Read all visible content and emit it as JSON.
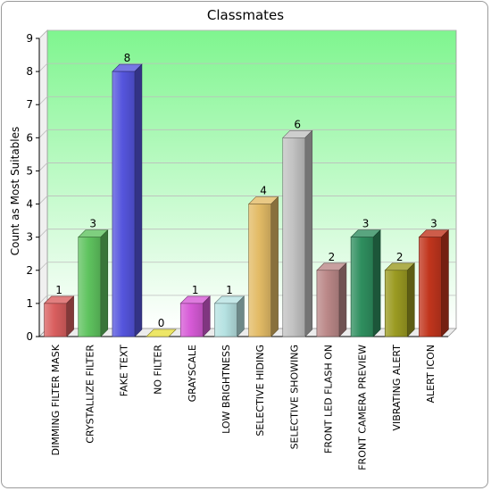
{
  "chart_data": {
    "type": "bar",
    "title": "Classmates",
    "xlabel": "",
    "ylabel": "Count as Most Suitables",
    "ylim": [
      0,
      9
    ],
    "yticks": [
      0,
      1,
      2,
      3,
      4,
      5,
      6,
      7,
      8,
      9
    ],
    "grid": true,
    "categories": [
      "DIMMING FILTER MASK",
      "CRYSTALLIZE FILTER",
      "FAKE TEXT",
      "NO FILTER",
      "GRAYSCALE",
      "LOW BRIGHTNESS",
      "SELECTIVE HIDING",
      "SELECTIVE SHOWING",
      "FRONT LED FLASH ON",
      "FRONT CAMERA PREVIEW",
      "VIBRATING ALERT",
      "ALERT ICON"
    ],
    "values": [
      1,
      3,
      8,
      0,
      1,
      1,
      4,
      6,
      2,
      3,
      2,
      3
    ],
    "colors": [
      "#d95f5f",
      "#5fc35f",
      "#5555dd",
      "#e8e040",
      "#d65ad6",
      "#b6e2e2",
      "#e3bb66",
      "#c2c2c2",
      "#bb8888",
      "#2f8f5f",
      "#9b9b22",
      "#c1351d"
    ],
    "background_top": "#7ff58f",
    "background_bottom": "#ffffff"
  }
}
